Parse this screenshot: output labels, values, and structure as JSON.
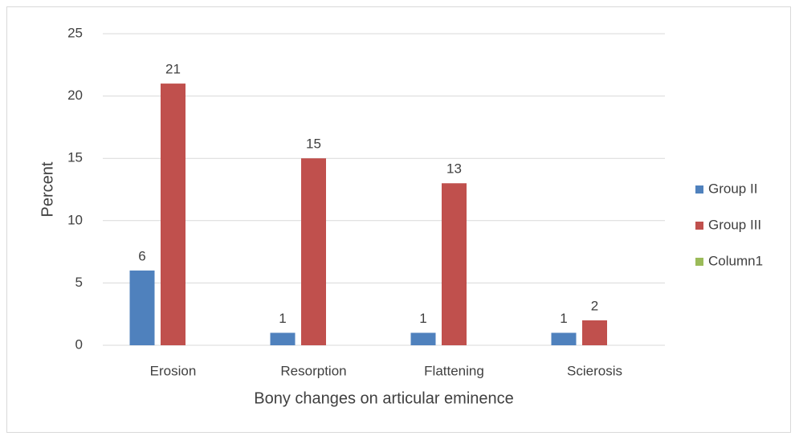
{
  "chart_data": {
    "type": "bar",
    "x_label": "Bony changes on articular eminence",
    "y_label": "Percent",
    "categories": [
      "Erosion",
      "Resorption",
      "Flattening",
      "Scierosis"
    ],
    "series": [
      {
        "name": "Group II",
        "color": "#4f81bd",
        "values": [
          6,
          1,
          1,
          1
        ]
      },
      {
        "name": "Group III",
        "color": "#c0504d",
        "values": [
          21,
          15,
          13,
          2
        ]
      },
      {
        "name": "Column1",
        "color": "#9bbb59",
        "values": [
          null,
          null,
          null,
          null
        ]
      }
    ],
    "ylim": [
      0,
      25
    ],
    "yticks": [
      0,
      5,
      10,
      15,
      20,
      25
    ],
    "grid": true,
    "legend": "right"
  }
}
